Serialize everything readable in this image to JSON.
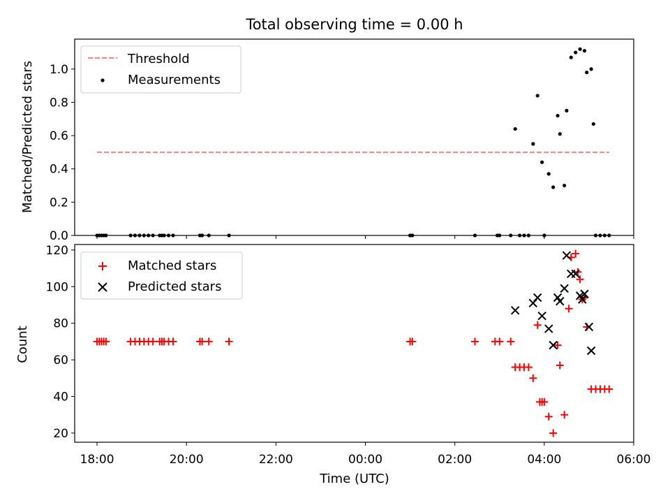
{
  "chart_data": {
    "title": "Total observing time = 0.00 h",
    "xlabel": "Time (UTC)",
    "x_ticks": [
      "18:00",
      "20:00",
      "22:00",
      "00:00",
      "02:00",
      "04:00",
      "06:00"
    ],
    "xlim_hours": [
      17.5,
      30.0
    ],
    "panels": [
      {
        "type": "scatter",
        "ylabel": "Matched/Predicted stars",
        "ylim": [
          0,
          1.18
        ],
        "y_ticks": [
          "0.0",
          "0.2",
          "0.4",
          "0.6",
          "0.8",
          "1.0"
        ],
        "y_tick_values": [
          0,
          0.2,
          0.4,
          0.6,
          0.8,
          1.0
        ],
        "legend": {
          "placement": "upper-left",
          "entries": [
            "Threshold",
            "Measurements"
          ]
        },
        "threshold": {
          "name": "Threshold",
          "value": 0.5,
          "x_start": 18.0,
          "x_end": 29.45,
          "color": "#ff7f7f",
          "style": "dashed"
        },
        "series": [
          {
            "name": "Measurements",
            "marker": "dot",
            "color": "#000000",
            "x": [
              18.0,
              18.05,
              18.1,
              18.15,
              18.2,
              18.75,
              18.85,
              18.95,
              19.05,
              19.15,
              19.25,
              19.4,
              19.45,
              19.5,
              19.6,
              19.7,
              20.3,
              20.35,
              20.5,
              20.95,
              25.0,
              25.05,
              26.45,
              26.95,
              27.0,
              27.25,
              27.35,
              27.45,
              27.55,
              27.65,
              27.75,
              27.85,
              27.95,
              28.0,
              28.1,
              28.2,
              28.3,
              28.35,
              28.45,
              28.5,
              28.6,
              28.7,
              28.8,
              28.9,
              28.95,
              29.05,
              29.1,
              29.15,
              29.25,
              29.35,
              29.45
            ],
            "y": [
              0,
              0,
              0,
              0,
              0,
              0,
              0,
              0,
              0,
              0,
              0,
              0,
              0,
              0,
              0,
              0,
              0,
              0,
              0,
              0,
              0,
              0,
              0,
              0,
              0,
              0,
              0.64,
              0,
              0,
              0,
              0.55,
              0.84,
              0.44,
              0,
              0.37,
              0.29,
              0.72,
              0.61,
              0.3,
              0.75,
              1.07,
              1.1,
              1.12,
              1.11,
              0.98,
              1.0,
              0.67,
              0,
              0,
              0,
              0
            ]
          }
        ]
      },
      {
        "type": "scatter",
        "ylabel": "Count",
        "ylim": [
          15,
          123
        ],
        "y_ticks": [
          "20",
          "40",
          "60",
          "80",
          "100",
          "120"
        ],
        "y_tick_values": [
          20,
          40,
          60,
          80,
          100,
          120
        ],
        "legend": {
          "placement": "upper-left",
          "entries": [
            "Matched stars",
            "Predicted stars"
          ]
        },
        "series": [
          {
            "name": "Matched stars",
            "marker": "plus",
            "color": "#ff0000",
            "x": [
              18.0,
              18.05,
              18.1,
              18.15,
              18.2,
              18.75,
              18.85,
              18.95,
              19.05,
              19.15,
              19.25,
              19.4,
              19.45,
              19.5,
              19.6,
              19.7,
              20.3,
              20.35,
              20.5,
              20.95,
              25.0,
              25.05,
              26.45,
              26.9,
              27.0,
              27.25,
              27.35,
              27.45,
              27.55,
              27.65,
              27.75,
              27.85,
              27.95,
              27.9,
              28.0,
              28.1,
              28.2,
              28.3,
              28.35,
              28.45,
              28.55,
              28.6,
              28.7,
              28.75,
              28.8,
              28.85,
              28.9,
              28.95,
              29.05,
              29.15,
              29.25,
              29.35,
              29.45
            ],
            "y": [
              70,
              70,
              70,
              70,
              70,
              70,
              70,
              70,
              70,
              70,
              70,
              70,
              70,
              70,
              70,
              70,
              70,
              70,
              70,
              70,
              70,
              70,
              70,
              70,
              70,
              70,
              56,
              56,
              56,
              56,
              50,
              79,
              37,
              37,
              37,
              29,
              20,
              68,
              57,
              30,
              88,
              116,
              118,
              108,
              104,
              93,
              94,
              78,
              44,
              44,
              44,
              44,
              44
            ]
          },
          {
            "name": "Predicted stars",
            "marker": "x",
            "color": "#000000",
            "x": [
              27.35,
              27.75,
              27.85,
              27.95,
              28.1,
              28.2,
              28.3,
              28.35,
              28.45,
              28.5,
              28.6,
              28.7,
              28.8,
              28.85,
              28.9,
              29.0,
              29.05
            ],
            "y": [
              87,
              91,
              94,
              84,
              77,
              68,
              94,
              92,
              99,
              117,
              107,
              107,
              95,
              93,
              96,
              78,
              65
            ]
          }
        ]
      }
    ]
  }
}
